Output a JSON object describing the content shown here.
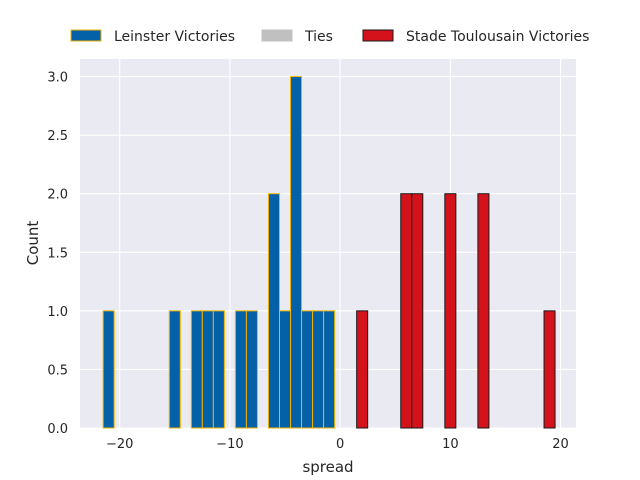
{
  "chart_data": {
    "type": "bar",
    "title": "",
    "xlabel": "spread",
    "ylabel": "Count",
    "xlim": [
      -23.6,
      21.4
    ],
    "ylim": [
      0,
      3.15
    ],
    "xticks": [
      -20,
      -10,
      0,
      10,
      20
    ],
    "xtick_labels": [
      "−20",
      "−10",
      "0",
      "10",
      "20"
    ],
    "yticks": [
      0.0,
      0.5,
      1.0,
      1.5,
      2.0,
      2.5,
      3.0
    ],
    "ytick_labels": [
      "0.0",
      "0.5",
      "1.0",
      "1.5",
      "2.0",
      "2.5",
      "3.0"
    ],
    "grid": true,
    "legend_position": "top",
    "bin_width": 1,
    "series": [
      {
        "name": "Leinster Victories",
        "color": "#0461a7",
        "edge_color": "#f2b200",
        "bins": [
          {
            "x": -21,
            "count": 1
          },
          {
            "x": -15,
            "count": 1
          },
          {
            "x": -13,
            "count": 1
          },
          {
            "x": -12,
            "count": 1
          },
          {
            "x": -11,
            "count": 1
          },
          {
            "x": -9,
            "count": 1
          },
          {
            "x": -8,
            "count": 1
          },
          {
            "x": -6,
            "count": 2
          },
          {
            "x": -5,
            "count": 1
          },
          {
            "x": -4,
            "count": 3
          },
          {
            "x": -3,
            "count": 1
          },
          {
            "x": -2,
            "count": 1
          },
          {
            "x": -1,
            "count": 1
          }
        ]
      },
      {
        "name": "Ties",
        "color": "#c0c0c0",
        "edge_color": "#c0c0c0",
        "bins": []
      },
      {
        "name": "Stade Toulousain Victories",
        "color": "#d3121b",
        "edge_color": "#1a1a1a",
        "bins": [
          {
            "x": 2,
            "count": 1
          },
          {
            "x": 6,
            "count": 2
          },
          {
            "x": 7,
            "count": 2
          },
          {
            "x": 10,
            "count": 2
          },
          {
            "x": 13,
            "count": 2
          },
          {
            "x": 19,
            "count": 1
          }
        ]
      }
    ]
  }
}
